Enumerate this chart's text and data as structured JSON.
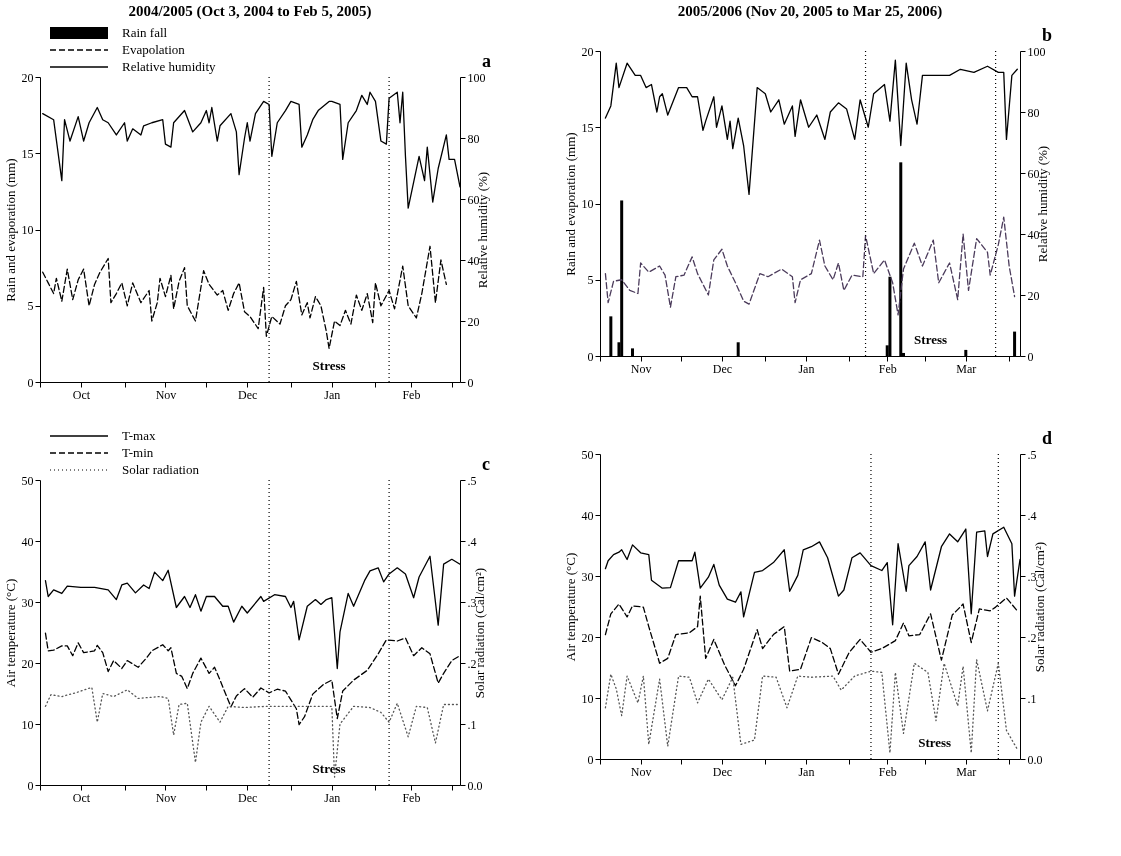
{
  "chart_data": [
    {
      "type": "line",
      "title": "2004/2005 (Oct 3, 2004 to Feb 5, 2005)",
      "ylabel": "Rain and evaporation (mm)",
      "y2label": "Relative humidity (%)",
      "legend": "top left",
      "xlim": [
        "2004-10-01",
        "2005-03-04"
      ],
      "xticks": [
        {
          "value": "2004-10-01",
          "label": null
        },
        {
          "value": "2004-10-16",
          "label": "Oct"
        },
        {
          "value": "2004-11-01",
          "label": null
        },
        {
          "value": "2004-11-16",
          "label": "Nov"
        },
        {
          "value": "2004-12-01",
          "label": null
        },
        {
          "value": "2004-12-16",
          "label": "Dec"
        },
        {
          "value": "2005-01-01",
          "label": null
        },
        {
          "value": "2005-01-16",
          "label": "Jan"
        },
        {
          "value": "2005-02-01",
          "label": null
        },
        {
          "value": "2005-02-14",
          "label": "Feb"
        },
        {
          "value": "2005-03-01",
          "label": null
        }
      ],
      "ylim": [
        0,
        20
      ],
      "yticks": [
        0,
        5,
        10,
        15,
        20
      ],
      "y2lim": [
        0,
        100
      ],
      "y2ticks": [
        0,
        20,
        40,
        60,
        80,
        100
      ],
      "series": [
        {
          "name": "Rain fall",
          "type": "bar",
          "color": "#000000"
        },
        {
          "name": "Evapolation",
          "line_style": "dashed",
          "color": "#000000",
          "x": [
            "2004-10-02",
            "2004-10-04",
            "2004-10-06",
            "2004-10-07",
            "2004-10-09",
            "2004-10-11",
            "2004-10-13",
            "2004-10-15",
            "2004-10-17",
            "2004-10-19",
            "2004-10-21",
            "2004-10-23",
            "2004-10-26",
            "2004-10-27",
            "2004-10-29",
            "2004-10-31",
            "2004-11-02",
            "2004-11-04",
            "2004-11-07",
            "2004-11-10",
            "2004-11-11",
            "2004-11-13",
            "2004-11-14",
            "2004-11-16",
            "2004-11-18",
            "2004-11-19",
            "2004-11-21",
            "2004-11-23",
            "2004-11-24",
            "2004-11-27",
            "2004-11-29",
            "2004-11-30",
            "2004-12-02",
            "2004-12-05",
            "2004-12-07",
            "2004-12-09",
            "2004-12-11",
            "2004-12-13",
            "2004-12-15",
            "2004-12-17",
            "2004-12-20",
            "2004-12-22",
            "2004-12-23",
            "2004-12-25",
            "2004-12-28",
            "2004-12-30",
            "2005-01-01",
            "2005-01-03",
            "2005-01-05",
            "2005-01-07",
            "2005-01-08",
            "2005-01-10",
            "2005-01-12",
            "2005-01-14",
            "2005-01-15",
            "2005-01-17",
            "2005-01-19",
            "2005-01-21",
            "2005-01-23",
            "2005-01-25",
            "2005-01-27",
            "2005-01-29",
            "2005-01-31",
            "2005-02-01",
            "2005-02-03",
            "2005-02-06",
            "2005-02-08",
            "2005-02-11",
            "2005-02-13",
            "2005-02-16",
            "2005-02-18",
            "2005-02-21",
            "2005-02-23",
            "2005-02-25",
            "2005-02-27"
          ],
          "values": [
            7.2,
            6.5,
            5.8,
            6.8,
            5.3,
            7.4,
            5.4,
            6.7,
            7.4,
            5.0,
            6.4,
            7.2,
            8.1,
            5.2,
            5.8,
            6.5,
            5.0,
            6.5,
            5.2,
            6.0,
            4.0,
            5.2,
            6.8,
            5.6,
            7.0,
            4.8,
            6.6,
            7.5,
            5.0,
            4.0,
            6.2,
            7.3,
            6.4,
            5.7,
            6.0,
            4.7,
            5.8,
            6.5,
            4.6,
            4.3,
            3.5,
            6.2,
            3.0,
            4.3,
            3.8,
            5.0,
            5.4,
            6.6,
            4.4,
            5.2,
            4.2,
            5.6,
            5.0,
            3.3,
            2.2,
            4.0,
            3.7,
            4.7,
            3.8,
            5.7,
            4.7,
            5.8,
            3.9,
            6.5,
            5.0,
            6.0,
            4.8,
            7.6,
            5.0,
            4.2,
            5.8,
            8.9,
            5.2,
            8.0,
            6.4
          ]
        },
        {
          "name": "Relative humidity",
          "axis": "y2",
          "line_style": "solid",
          "color": "#000000",
          "x": [
            "2004-10-02",
            "2004-10-06",
            "2004-10-09",
            "2004-10-10",
            "2004-10-12",
            "2004-10-15",
            "2004-10-17",
            "2004-10-19",
            "2004-10-22",
            "2004-10-24",
            "2004-10-26",
            "2004-10-29",
            "2004-11-01",
            "2004-11-02",
            "2004-11-04",
            "2004-11-07",
            "2004-11-08",
            "2004-11-11",
            "2004-11-15",
            "2004-11-16",
            "2004-11-18",
            "2004-11-19",
            "2004-11-23",
            "2004-11-26",
            "2004-11-29",
            "2004-12-01",
            "2004-12-02",
            "2004-12-03",
            "2004-12-05",
            "2004-12-06",
            "2004-12-10",
            "2004-12-12",
            "2004-12-13",
            "2004-12-15",
            "2004-12-16",
            "2004-12-17",
            "2004-12-19",
            "2004-12-22",
            "2004-12-24",
            "2004-12-25",
            "2004-12-27",
            "2004-12-30",
            "2005-01-01",
            "2005-01-04",
            "2005-01-05",
            "2005-01-07",
            "2005-01-09",
            "2005-01-11",
            "2005-01-15",
            "2005-01-16",
            "2005-01-19",
            "2005-01-20",
            "2005-01-22",
            "2005-01-25",
            "2005-01-27",
            "2005-01-29",
            "2005-01-30",
            "2005-02-01",
            "2005-02-03",
            "2005-02-05",
            "2005-02-06",
            "2005-02-09",
            "2005-02-10",
            "2005-02-11",
            "2005-02-12",
            "2005-02-13",
            "2005-02-17",
            "2005-02-19",
            "2005-02-20",
            "2005-02-22",
            "2005-02-24",
            "2005-02-27",
            "2005-02-28",
            "2005-03-02",
            "2005-03-04"
          ],
          "values": [
            88,
            86,
            66,
            86,
            79,
            87,
            79,
            85,
            90,
            86,
            85,
            81,
            85,
            79,
            83,
            81,
            84,
            85,
            86,
            78,
            77,
            85,
            89,
            82,
            85,
            89,
            85,
            90,
            79,
            84,
            88,
            82,
            68,
            80,
            85,
            79,
            88,
            92,
            91,
            74,
            85,
            89,
            92,
            91,
            77,
            81,
            86,
            89,
            92,
            92,
            91,
            73,
            85,
            89,
            94,
            91,
            95,
            92,
            79,
            78,
            93,
            95,
            85,
            95,
            74,
            57,
            74,
            66,
            77,
            59,
            70,
            81,
            73,
            73,
            64
          ]
        }
      ],
      "ref_lines": [
        {
          "axis": "x",
          "value": "2004-12-24",
          "line_style": "dotted",
          "color": "#000000"
        },
        {
          "axis": "x",
          "value": "2005-02-06",
          "line_style": "dotted",
          "color": "#000000"
        }
      ],
      "annotations": [
        "a",
        "Stress"
      ]
    },
    {
      "type": "line",
      "title": "2005/2006 (Nov 20, 2005 to Mar 25, 2006)",
      "ylabel": "Rain and evaporation (mm)",
      "y2label": "Relative humidity (%)",
      "xlim": [
        "2005-11-01",
        "2006-04-05"
      ],
      "xticks": [
        {
          "value": "2005-11-01",
          "label": null
        },
        {
          "value": "2005-11-16",
          "label": "Nov"
        },
        {
          "value": "2005-12-01",
          "label": null
        },
        {
          "value": "2005-12-16",
          "label": "Dec"
        },
        {
          "value": "2006-01-01",
          "label": null
        },
        {
          "value": "2006-01-16",
          "label": "Jan"
        },
        {
          "value": "2006-02-01",
          "label": null
        },
        {
          "value": "2006-02-15",
          "label": "Feb"
        },
        {
          "value": "2006-03-01",
          "label": null
        },
        {
          "value": "2006-03-16",
          "label": "Mar"
        },
        {
          "value": "2006-04-01",
          "label": null
        }
      ],
      "ylim": [
        0,
        20
      ],
      "yticks": [
        0,
        5,
        10,
        15,
        20
      ],
      "y2lim": [
        0,
        100
      ],
      "y2ticks": [
        0,
        20,
        40,
        60,
        80,
        100
      ],
      "series": [
        {
          "type": "bar",
          "color": "#000000",
          "x": [
            "2005-11-05",
            "2005-11-08",
            "2005-11-09",
            "2005-11-13",
            "2005-12-22",
            "2006-02-15",
            "2006-02-16",
            "2006-02-20",
            "2006-02-21",
            "2006-03-16",
            "2006-04-03"
          ],
          "values": [
            2.6,
            0.9,
            10.2,
            0.5,
            0.9,
            0.7,
            5.2,
            12.7,
            0.2,
            0.4,
            1.6
          ]
        },
        {
          "line_style": "dashed",
          "color": "#4b3b5b",
          "x": [
            "2005-11-03",
            "2005-11-04",
            "2005-11-06",
            "2005-11-09",
            "2005-11-12",
            "2005-11-15",
            "2005-11-16",
            "2005-11-19",
            "2005-11-23",
            "2005-11-25",
            "2005-11-27",
            "2005-11-29",
            "2005-12-02",
            "2005-12-05",
            "2005-12-07",
            "2005-12-11",
            "2005-12-13",
            "2005-12-16",
            "2005-12-18",
            "2005-12-21",
            "2005-12-24",
            "2005-12-26",
            "2005-12-30",
            "2006-01-02",
            "2006-01-07",
            "2006-01-11",
            "2006-01-12",
            "2006-01-14",
            "2006-01-18",
            "2006-01-21",
            "2006-01-23",
            "2006-01-26",
            "2006-01-28",
            "2006-01-30",
            "2006-02-02",
            "2006-02-06",
            "2006-02-07",
            "2006-02-10",
            "2006-02-14",
            "2006-02-17",
            "2006-02-19",
            "2006-02-21",
            "2006-02-25",
            "2006-02-28",
            "2006-03-04",
            "2006-03-06",
            "2006-03-10",
            "2006-03-13",
            "2006-03-15",
            "2006-03-17",
            "2006-03-20",
            "2006-03-24",
            "2006-03-25",
            "2006-03-28",
            "2006-03-30",
            "2006-04-01",
            "2006-04-03"
          ],
          "values": [
            5.4,
            3.5,
            4.9,
            5.0,
            4.3,
            4.1,
            6.1,
            5.5,
            5.9,
            5.3,
            3.2,
            5.2,
            5.3,
            6.5,
            5.4,
            4.0,
            6.3,
            7.0,
            5.9,
            4.8,
            3.6,
            3.4,
            5.4,
            5.2,
            5.7,
            5.2,
            3.5,
            5.0,
            5.4,
            7.6,
            5.9,
            5.0,
            6.1,
            4.3,
            5.3,
            5.2,
            7.9,
            5.4,
            6.3,
            4.8,
            2.7,
            5.7,
            7.4,
            5.9,
            7.6,
            4.8,
            6.1,
            3.7,
            8.0,
            4.3,
            7.7,
            6.8,
            5.3,
            7.3,
            9.1,
            5.9,
            3.9
          ]
        },
        {
          "axis": "y2",
          "line_style": "solid",
          "color": "#000000",
          "x": [
            "2005-11-03",
            "2005-11-05",
            "2005-11-07",
            "2005-11-08",
            "2005-11-11",
            "2005-11-14",
            "2005-11-16",
            "2005-11-18",
            "2005-11-20",
            "2005-11-22",
            "2005-11-23",
            "2005-11-24",
            "2005-11-26",
            "2005-11-30",
            "2005-12-03",
            "2005-12-05",
            "2005-12-07",
            "2005-12-09",
            "2005-12-10",
            "2005-12-13",
            "2005-12-14",
            "2005-12-16",
            "2005-12-18",
            "2005-12-19",
            "2005-12-20",
            "2005-12-22",
            "2005-12-24",
            "2005-12-26",
            "2005-12-29",
            "2006-01-01",
            "2006-01-03",
            "2006-01-06",
            "2006-01-08",
            "2006-01-11",
            "2006-01-12",
            "2006-01-14",
            "2006-01-17",
            "2006-01-20",
            "2006-01-23",
            "2006-01-25",
            "2006-01-28",
            "2006-01-31",
            "2006-02-03",
            "2006-02-05",
            "2006-02-08",
            "2006-02-10",
            "2006-02-14",
            "2006-02-16",
            "2006-02-18",
            "2006-02-20",
            "2006-02-22",
            "2006-02-24",
            "2006-02-26",
            "2006-02-28",
            "2006-03-04",
            "2006-03-10",
            "2006-03-14",
            "2006-03-19",
            "2006-03-24",
            "2006-03-28",
            "2006-03-30",
            "2006-03-31",
            "2006-04-02",
            "2006-04-04"
          ],
          "values": [
            78,
            82,
            96,
            88,
            96,
            92,
            92,
            88,
            89,
            80,
            85,
            86,
            79,
            88,
            88,
            85,
            85,
            74,
            77,
            85,
            75,
            82,
            71,
            77,
            68,
            78,
            69,
            53,
            88,
            86,
            80,
            84,
            76,
            82,
            72,
            84,
            75,
            79,
            71,
            80,
            83,
            81,
            71,
            84,
            75,
            86,
            89,
            77,
            97,
            69,
            96,
            84,
            76,
            92,
            92,
            92,
            94,
            93,
            95,
            93,
            93,
            71,
            92,
            94
          ]
        }
      ],
      "ref_lines": [
        {
          "axis": "x",
          "value": "2006-02-07",
          "line_style": "dotted",
          "color": "#000000"
        },
        {
          "axis": "x",
          "value": "2006-03-27",
          "line_style": "dotted",
          "color": "#000000"
        }
      ],
      "annotations": [
        "b",
        "Stress"
      ]
    },
    {
      "type": "line",
      "ylabel": "Air temperature (°C)",
      "y2label": "Solar radiation (Cal/cm²)",
      "legend": "top left",
      "xlim": [
        "2004-10-01",
        "2005-03-04"
      ],
      "xticks": [
        {
          "value": "2004-10-01",
          "label": null
        },
        {
          "value": "2004-10-16",
          "label": "Oct"
        },
        {
          "value": "2004-11-01",
          "label": null
        },
        {
          "value": "2004-11-16",
          "label": "Nov"
        },
        {
          "value": "2004-12-01",
          "label": null
        },
        {
          "value": "2004-12-16",
          "label": "Dec"
        },
        {
          "value": "2005-01-01",
          "label": null
        },
        {
          "value": "2005-01-16",
          "label": "Jan"
        },
        {
          "value": "2005-02-01",
          "label": null
        },
        {
          "value": "2005-02-14",
          "label": "Feb"
        },
        {
          "value": "2005-03-01",
          "label": null
        }
      ],
      "ylim": [
        0,
        50
      ],
      "yticks": [
        0,
        10,
        20,
        30,
        40,
        50
      ],
      "y2lim": [
        0,
        0.5
      ],
      "y2ticks": [
        {
          "value": 0,
          "label": "0.0"
        },
        {
          "value": 0.1,
          "label": ".1"
        },
        {
          "value": 0.2,
          "label": ".2"
        },
        {
          "value": 0.3,
          "label": ".3"
        },
        {
          "value": 0.4,
          "label": ".4"
        },
        {
          "value": 0.5,
          "label": ".5"
        }
      ],
      "series": [
        {
          "name": "T-max",
          "line_style": "solid",
          "color": "#000000",
          "x": [
            "2004-10-03",
            "2004-10-04",
            "2004-10-06",
            "2004-10-09",
            "2004-10-11",
            "2004-10-16",
            "2004-10-21",
            "2004-10-26",
            "2004-10-29",
            "2004-10-31",
            "2004-11-02",
            "2004-11-05",
            "2004-11-08",
            "2004-11-10",
            "2004-11-12",
            "2004-11-15",
            "2004-11-17",
            "2004-11-20",
            "2004-11-23",
            "2004-11-25",
            "2004-11-27",
            "2004-11-29",
            "2004-12-01",
            "2004-12-04",
            "2004-12-07",
            "2004-12-09",
            "2004-12-11",
            "2004-12-14",
            "2004-12-16",
            "2004-12-21",
            "2004-12-22",
            "2004-12-26",
            "2004-12-30",
            "2005-01-01",
            "2005-01-02",
            "2005-01-04",
            "2005-01-07",
            "2005-01-10",
            "2005-01-12",
            "2005-01-14",
            "2005-01-16",
            "2005-01-18",
            "2005-01-19",
            "2005-01-22",
            "2005-01-24",
            "2005-01-28",
            "2005-01-30",
            "2005-02-02",
            "2005-02-04",
            "2005-02-06",
            "2005-02-09",
            "2005-02-12",
            "2005-02-15",
            "2005-02-17",
            "2005-02-21",
            "2005-02-24",
            "2005-02-26",
            "2005-03-01",
            "2005-03-04"
          ],
          "values": [
            33.5,
            30.9,
            32.0,
            31.4,
            32.6,
            32.4,
            32.4,
            32.0,
            30.4,
            32.8,
            33.1,
            31.5,
            32.8,
            32.2,
            34.9,
            33.5,
            35.2,
            29.1,
            30.9,
            29.1,
            31.2,
            28.5,
            30.9,
            30.9,
            29.3,
            29.3,
            26.7,
            29.3,
            28.2,
            30.9,
            30.1,
            31.2,
            30.9,
            29.1,
            30.1,
            23.8,
            29.3,
            30.4,
            29.6,
            30.4,
            30.7,
            19.1,
            25.1,
            31.4,
            29.3,
            33.5,
            35.1,
            35.6,
            33.3,
            34.6,
            35.6,
            34.6,
            30.7,
            34.1,
            37.5,
            26.2,
            36.2,
            37.0,
            36.2
          ]
        },
        {
          "name": "T-min",
          "line_style": "dashed",
          "color": "#000000",
          "x": [
            "2004-10-03",
            "2004-10-04",
            "2004-10-06",
            "2004-10-09",
            "2004-10-11",
            "2004-10-13",
            "2004-10-15",
            "2004-10-17",
            "2004-10-21",
            "2004-10-22",
            "2004-10-24",
            "2004-10-26",
            "2004-10-28",
            "2004-10-31",
            "2004-11-02",
            "2004-11-06",
            "2004-11-09",
            "2004-11-11",
            "2004-11-15",
            "2004-11-17",
            "2004-11-18",
            "2004-11-20",
            "2004-11-22",
            "2004-11-24",
            "2004-11-26",
            "2004-11-29",
            "2004-12-02",
            "2004-12-04",
            "2004-12-06",
            "2004-12-10",
            "2004-12-12",
            "2004-12-15",
            "2004-12-18",
            "2004-12-21",
            "2004-12-24",
            "2004-12-27",
            "2004-12-30",
            "2005-01-03",
            "2005-01-04",
            "2005-01-06",
            "2005-01-09",
            "2005-01-13",
            "2005-01-16",
            "2005-01-18",
            "2005-01-20",
            "2005-01-24",
            "2005-01-29",
            "2005-02-02",
            "2005-02-05",
            "2005-02-09",
            "2005-02-12",
            "2005-02-15",
            "2005-02-18",
            "2005-02-21",
            "2005-02-24",
            "2005-02-26",
            "2005-03-01",
            "2005-03-04"
          ],
          "values": [
            24.9,
            22.0,
            22.1,
            22.8,
            22.8,
            21.2,
            23.3,
            21.7,
            22.0,
            22.9,
            21.7,
            18.6,
            20.4,
            19.1,
            20.4,
            19.3,
            20.8,
            22.0,
            23.0,
            22.0,
            22.5,
            18.3,
            17.8,
            15.8,
            18.3,
            20.8,
            18.3,
            19.3,
            17.2,
            12.8,
            14.6,
            15.8,
            14.4,
            15.9,
            15.1,
            15.7,
            15.4,
            12.5,
            9.9,
            11.2,
            14.9,
            16.5,
            17.2,
            10.9,
            15.4,
            17.2,
            18.8,
            21.5,
            23.8,
            23.6,
            24.1,
            21.2,
            22.5,
            21.5,
            16.7,
            18.3,
            20.4,
            21.2
          ]
        },
        {
          "name": "Solar radiation",
          "axis": "y2",
          "line_style": "dotted",
          "color": "#555555",
          "x": [
            "2004-10-03",
            "2004-10-05",
            "2004-10-09",
            "2004-10-14",
            "2004-10-20",
            "2004-10-22",
            "2004-10-24",
            "2004-10-28",
            "2004-11-02",
            "2004-11-06",
            "2004-11-14",
            "2004-11-17",
            "2004-11-19",
            "2004-11-21",
            "2004-11-24",
            "2004-11-27",
            "2004-11-29",
            "2004-12-02",
            "2004-12-06",
            "2004-12-09",
            "2004-12-15",
            "2004-12-23",
            "2004-12-30",
            "2005-01-07",
            "2005-01-12",
            "2005-01-16",
            "2005-01-17",
            "2005-01-19",
            "2005-01-24",
            "2005-01-30",
            "2005-02-03",
            "2005-02-06",
            "2005-02-09",
            "2005-02-13",
            "2005-02-16",
            "2005-02-20",
            "2005-02-23",
            "2005-02-26",
            "2005-03-03"
          ],
          "values": [
            0.129,
            0.148,
            0.145,
            0.151,
            0.16,
            0.103,
            0.15,
            0.145,
            0.156,
            0.142,
            0.145,
            0.142,
            0.082,
            0.132,
            0.134,
            0.037,
            0.103,
            0.129,
            0.103,
            0.129,
            0.127,
            0.129,
            0.129,
            0.129,
            0.129,
            0.129,
            0.013,
            0.1,
            0.129,
            0.127,
            0.119,
            0.103,
            0.134,
            0.079,
            0.129,
            0.127,
            0.069,
            0.132,
            0.132
          ]
        }
      ],
      "ref_lines": [
        {
          "axis": "x",
          "value": "2004-12-24",
          "line_style": "dotted",
          "color": "#000000"
        },
        {
          "axis": "x",
          "value": "2005-02-06",
          "line_style": "dotted",
          "color": "#000000"
        }
      ],
      "annotations": [
        "c",
        "Stress"
      ]
    },
    {
      "type": "line",
      "ylabel": "Air temperature (°C)",
      "y2label": "Solar radiation (Cal/cm²)",
      "xlim": [
        "2005-11-01",
        "2006-04-05"
      ],
      "xticks": [
        {
          "value": "2005-11-01",
          "label": null
        },
        {
          "value": "2005-11-16",
          "label": "Nov"
        },
        {
          "value": "2005-12-01",
          "label": null
        },
        {
          "value": "2005-12-16",
          "label": "Dec"
        },
        {
          "value": "2006-01-01",
          "label": null
        },
        {
          "value": "2006-01-16",
          "label": "Jan"
        },
        {
          "value": "2006-02-01",
          "label": null
        },
        {
          "value": "2006-02-15",
          "label": "Feb"
        },
        {
          "value": "2006-03-01",
          "label": null
        },
        {
          "value": "2006-03-16",
          "label": "Mar"
        },
        {
          "value": "2006-04-01",
          "label": null
        }
      ],
      "ylim": [
        0,
        50
      ],
      "yticks": [
        0,
        10,
        20,
        30,
        40,
        50
      ],
      "y2lim": [
        0,
        0.5
      ],
      "y2ticks": [
        {
          "value": 0,
          "label": "0.0"
        },
        {
          "value": 0.1,
          "label": ".1"
        },
        {
          "value": 0.2,
          "label": ".2"
        },
        {
          "value": 0.3,
          "label": ".3"
        },
        {
          "value": 0.4,
          "label": ".4"
        },
        {
          "value": 0.5,
          "label": ".5"
        }
      ],
      "series": [
        {
          "line_style": "solid",
          "color": "#000000",
          "x": [
            "2005-11-03",
            "2005-11-04",
            "2005-11-06",
            "2005-11-08",
            "2005-11-09",
            "2005-11-11",
            "2005-11-13",
            "2005-11-16",
            "2005-11-19",
            "2005-11-20",
            "2005-11-24",
            "2005-11-27",
            "2005-11-30",
            "2005-12-05",
            "2005-12-06",
            "2005-12-08",
            "2005-12-11",
            "2005-12-13",
            "2005-12-15",
            "2005-12-18",
            "2005-12-21",
            "2005-12-23",
            "2005-12-24",
            "2005-12-28",
            "2005-12-31",
            "2006-01-04",
            "2006-01-08",
            "2006-01-10",
            "2006-01-13",
            "2006-01-15",
            "2006-01-18",
            "2006-01-21",
            "2006-01-24",
            "2006-01-28",
            "2006-01-30",
            "2006-02-02",
            "2006-02-05",
            "2006-02-09",
            "2006-02-13",
            "2006-02-15",
            "2006-02-17",
            "2006-02-19",
            "2006-02-22",
            "2006-02-23",
            "2006-02-26",
            "2006-03-01",
            "2006-03-03",
            "2006-03-07",
            "2006-03-10",
            "2006-03-13",
            "2006-03-16",
            "2006-03-18",
            "2006-03-20",
            "2006-03-23",
            "2006-03-24",
            "2006-03-26",
            "2006-03-30",
            "2006-04-02",
            "2006-04-03",
            "2006-04-05"
          ],
          "values": [
            31.2,
            32.5,
            33.5,
            33.9,
            34.3,
            32.7,
            35.1,
            33.8,
            33.5,
            29.3,
            28.0,
            28.1,
            32.5,
            32.5,
            33.9,
            28.0,
            29.8,
            31.9,
            28.5,
            26.2,
            25.7,
            27.4,
            23.3,
            30.6,
            30.9,
            32.2,
            34.3,
            27.5,
            30.1,
            34.3,
            34.8,
            35.6,
            33.0,
            26.7,
            27.7,
            33.0,
            33.8,
            31.7,
            30.9,
            32.2,
            22.0,
            35.3,
            27.5,
            31.7,
            33.2,
            35.6,
            27.7,
            34.8,
            36.9,
            35.6,
            37.7,
            23.8,
            37.2,
            37.4,
            33.2,
            36.9,
            38.0,
            35.3,
            26.7,
            32.7
          ]
        },
        {
          "line_style": "dashed",
          "color": "#000000",
          "x": [
            "2005-11-03",
            "2005-11-05",
            "2005-11-08",
            "2005-11-11",
            "2005-11-13",
            "2005-11-17",
            "2005-11-19",
            "2005-11-23",
            "2005-11-26",
            "2005-11-29",
            "2005-12-04",
            "2005-12-07",
            "2005-12-08",
            "2005-12-10",
            "2005-12-13",
            "2005-12-17",
            "2005-12-21",
            "2005-12-24",
            "2005-12-29",
            "2005-12-31",
            "2006-01-04",
            "2006-01-08",
            "2006-01-10",
            "2006-01-14",
            "2006-01-18",
            "2006-01-22",
            "2006-01-25",
            "2006-01-28",
            "2006-02-01",
            "2006-02-05",
            "2006-02-09",
            "2006-02-13",
            "2006-02-18",
            "2006-02-21",
            "2006-02-23",
            "2006-02-27",
            "2006-03-03",
            "2006-03-07",
            "2006-03-11",
            "2006-03-15",
            "2006-03-18",
            "2006-03-21",
            "2006-03-25",
            "2006-03-27",
            "2006-03-31",
            "2006-04-04"
          ],
          "values": [
            20.4,
            23.8,
            25.4,
            23.3,
            25.1,
            24.9,
            21.7,
            15.7,
            16.5,
            20.4,
            20.7,
            21.7,
            26.7,
            16.5,
            19.6,
            15.4,
            12.0,
            14.7,
            21.2,
            18.1,
            20.4,
            21.7,
            14.4,
            14.7,
            19.9,
            19.1,
            18.1,
            13.9,
            17.5,
            19.6,
            17.5,
            18.1,
            19.4,
            22.3,
            20.2,
            20.4,
            23.8,
            16.2,
            23.6,
            25.4,
            19.1,
            24.6,
            24.3,
            24.9,
            26.4,
            24.3
          ]
        },
        {
          "axis": "y2",
          "line_style": "dotted",
          "color": "#555555",
          "x": [
            "2005-11-03",
            "2005-11-05",
            "2005-11-07",
            "2005-11-09",
            "2005-11-11",
            "2005-11-15",
            "2005-11-17",
            "2005-11-19",
            "2005-11-23",
            "2005-11-26",
            "2005-11-30",
            "2005-12-04",
            "2005-12-07",
            "2005-12-11",
            "2005-12-16",
            "2005-12-20",
            "2005-12-23",
            "2005-12-28",
            "2005-12-31",
            "2006-01-05",
            "2006-01-09",
            "2006-01-13",
            "2006-01-18",
            "2006-01-26",
            "2006-01-29",
            "2006-02-03",
            "2006-02-09",
            "2006-02-13",
            "2006-02-16",
            "2006-02-18",
            "2006-02-21",
            "2006-02-25",
            "2006-03-02",
            "2006-03-05",
            "2006-03-08",
            "2006-03-13",
            "2006-03-15",
            "2006-03-18",
            "2006-03-20",
            "2006-03-24",
            "2006-03-28",
            "2006-03-31",
            "2006-04-04"
          ],
          "values": [
            0.084,
            0.139,
            0.115,
            0.071,
            0.136,
            0.092,
            0.136,
            0.024,
            0.131,
            0.021,
            0.136,
            0.134,
            0.092,
            0.131,
            0.097,
            0.134,
            0.024,
            0.031,
            0.136,
            0.134,
            0.084,
            0.136,
            0.134,
            0.136,
            0.113,
            0.136,
            0.144,
            0.142,
            0.01,
            0.142,
            0.042,
            0.157,
            0.142,
            0.063,
            0.157,
            0.087,
            0.152,
            0.01,
            0.163,
            0.079,
            0.157,
            0.047,
            0.016
          ]
        }
      ],
      "ref_lines": [
        {
          "axis": "x",
          "value": "2006-02-09",
          "line_style": "dotted",
          "color": "#000000"
        },
        {
          "axis": "x",
          "value": "2006-03-28",
          "line_style": "dotted",
          "color": "#000000"
        }
      ],
      "annotations": [
        "d",
        "Stress"
      ]
    }
  ]
}
